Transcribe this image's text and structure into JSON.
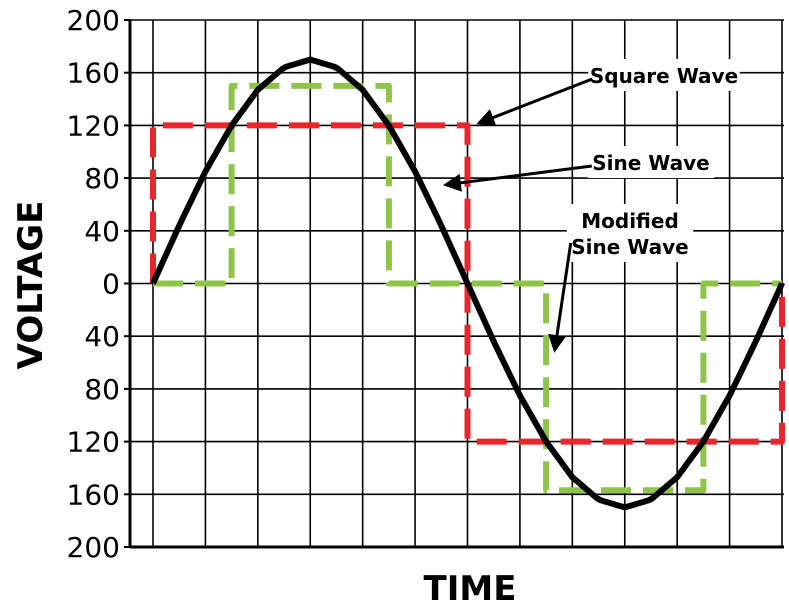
{
  "chart_data": {
    "type": "line",
    "xlabel": "TIME",
    "ylabel": "VOLTAGE",
    "ylim": [
      -200,
      200
    ],
    "xlim": [
      0,
      360
    ],
    "y_tick_labels": [
      "200",
      "160",
      "120",
      "80",
      "40",
      "0",
      "40",
      "80",
      "120",
      "160",
      "200"
    ],
    "grid": true,
    "colors": {
      "sine": "#000000",
      "square": "#e8262c",
      "modified": "#8dc449"
    },
    "series": [
      {
        "name": "Sine Wave",
        "style": "solid",
        "x": [
          0,
          15,
          30,
          45,
          60,
          75,
          90,
          105,
          120,
          135,
          150,
          165,
          180,
          195,
          210,
          225,
          240,
          255,
          270,
          285,
          300,
          315,
          330,
          345,
          360
        ],
        "y": [
          0,
          44,
          85,
          120,
          147,
          164,
          170,
          164,
          147,
          120,
          85,
          44,
          0,
          -44,
          -85,
          -120,
          -147,
          -164,
          -170,
          -164,
          -147,
          -120,
          -85,
          -44,
          0
        ]
      },
      {
        "name": "Square Wave",
        "style": "dashed",
        "x": [
          0,
          0,
          180,
          180,
          360,
          360
        ],
        "y": [
          0,
          120,
          120,
          -120,
          -120,
          0
        ]
      },
      {
        "name": "Modified Sine Wave",
        "style": "dashed",
        "x": [
          0,
          45,
          45,
          135,
          135,
          225,
          225,
          315,
          315,
          360
        ],
        "y": [
          0,
          0,
          150,
          150,
          0,
          0,
          -157,
          -157,
          0,
          0
        ]
      }
    ],
    "annotations": [
      {
        "lines": [
          "Square Wave"
        ],
        "points_to": "Square Wave",
        "target": [
          187,
          122
        ]
      },
      {
        "lines": [
          "Sine Wave"
        ],
        "points_to": "Sine Wave",
        "target": [
          168,
          75
        ]
      },
      {
        "lines": [
          "Modified",
          "Sine Wave"
        ],
        "points_to": "Modified Sine Wave",
        "target": [
          230,
          -50
        ]
      }
    ]
  }
}
